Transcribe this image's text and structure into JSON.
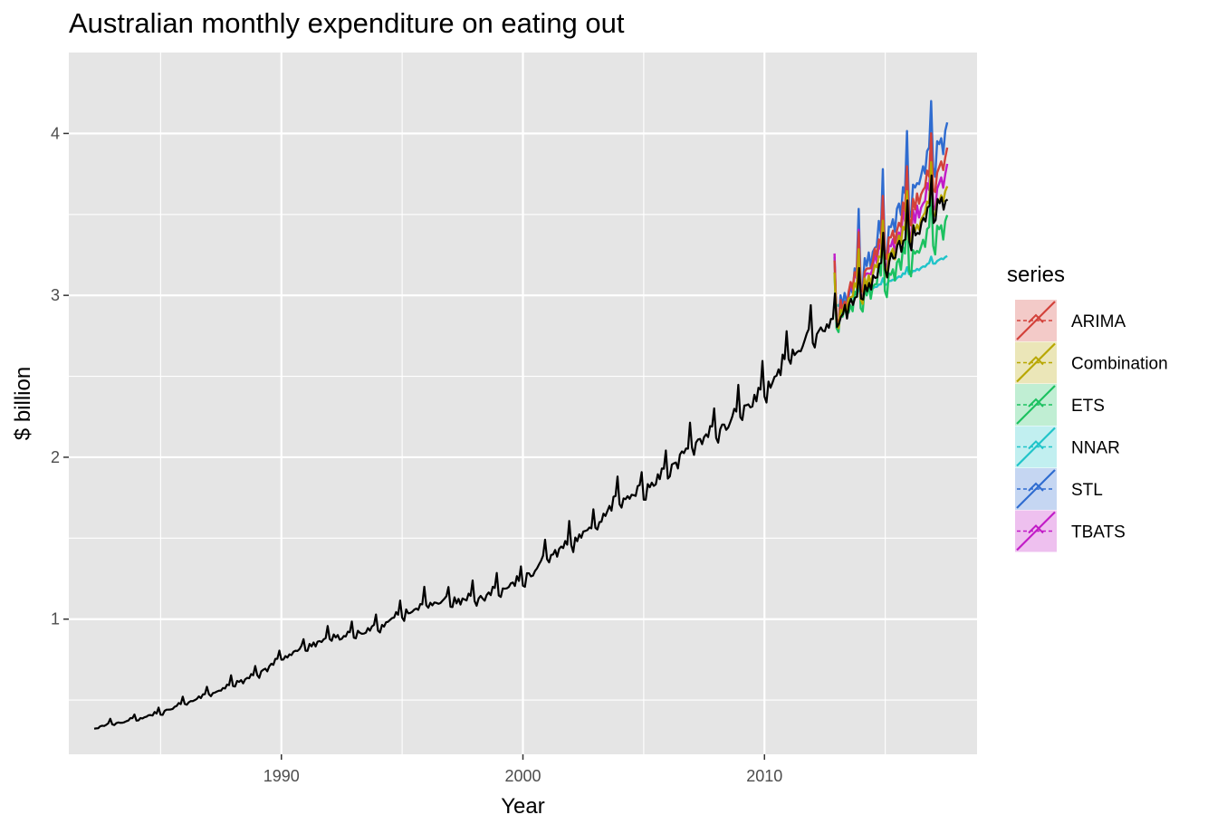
{
  "chart_data": {
    "type": "line",
    "title": "Australian monthly expenditure on eating out",
    "xlabel": "Year",
    "ylabel": "$ billion",
    "xlim": [
      1981.2,
      2018.8
    ],
    "ylim": [
      0.165,
      4.5
    ],
    "x_ticks": [
      1990,
      2000,
      2010
    ],
    "x_tick_labels": [
      "1990",
      "2000",
      "2010"
    ],
    "y_ticks": [
      1,
      2,
      3,
      4
    ],
    "y_tick_labels": [
      "1",
      "2",
      "3",
      "4"
    ],
    "grid": true,
    "legend": {
      "title": "series",
      "position": "right",
      "entries": [
        "ARIMA",
        "Combination",
        "ETS",
        "NNAR",
        "STL",
        "TBATS"
      ]
    },
    "colors": {
      "panel": "#e5e5e5",
      "grid": "#ffffff",
      "actual": "#000000",
      "ARIMA": "#d3413a",
      "Combination": "#b8a700",
      "ETS": "#1cc160",
      "NNAR": "#20c4c9",
      "STL": "#2f6cd0",
      "TBATS": "#c21bc7"
    },
    "actual_series": {
      "anchor_year": [
        1982.25,
        1983,
        1984,
        1985,
        1986,
        1987,
        1988,
        1989,
        1990,
        1991,
        1992,
        1993,
        1994,
        1995,
        1996,
        1997,
        1998,
        1999,
        2000,
        2001,
        2002,
        2003,
        2004,
        2005,
        2006,
        2007,
        2008,
        2009,
        2010,
        2011,
        2012,
        2013,
        2014,
        2015,
        2016,
        2017,
        2017.6
      ],
      "anchor_trend": [
        0.33,
        0.36,
        0.39,
        0.43,
        0.49,
        0.55,
        0.61,
        0.67,
        0.77,
        0.84,
        0.9,
        0.92,
        0.97,
        1.05,
        1.12,
        1.13,
        1.15,
        1.2,
        1.26,
        1.4,
        1.5,
        1.6,
        1.78,
        1.82,
        1.95,
        2.1,
        2.2,
        2.3,
        2.45,
        2.65,
        2.8,
        2.9,
        3.05,
        3.25,
        3.4,
        3.58,
        3.65
      ],
      "december_peak": [
        0.03,
        0.05,
        0.07,
        0.1,
        0.12,
        0.14,
        0.17,
        0.2,
        0.24
      ]
    },
    "forecast_series": [
      {
        "name": "ARIMA",
        "start": [
          2012.9,
          2.95
        ],
        "end": [
          2017.6,
          3.93
        ],
        "amplitude": 0.24
      },
      {
        "name": "Combination",
        "start": [
          2012.9,
          2.93
        ],
        "end": [
          2017.6,
          3.72
        ],
        "amplitude": 0.21
      },
      {
        "name": "ETS",
        "start": [
          2012.9,
          2.92
        ],
        "end": [
          2017.6,
          3.52
        ],
        "amplitude": 0.25
      },
      {
        "name": "NNAR",
        "start": [
          2012.9,
          2.95
        ],
        "end": [
          2017.6,
          3.25
        ],
        "amplitude": 0.03
      },
      {
        "name": "STL",
        "start": [
          2012.9,
          2.97
        ],
        "end": [
          2017.6,
          4.1
        ],
        "amplitude": 0.3
      },
      {
        "name": "TBATS",
        "start": [
          2012.9,
          2.96
        ],
        "end": [
          2017.6,
          3.83
        ],
        "amplitude": 0.27
      }
    ]
  }
}
